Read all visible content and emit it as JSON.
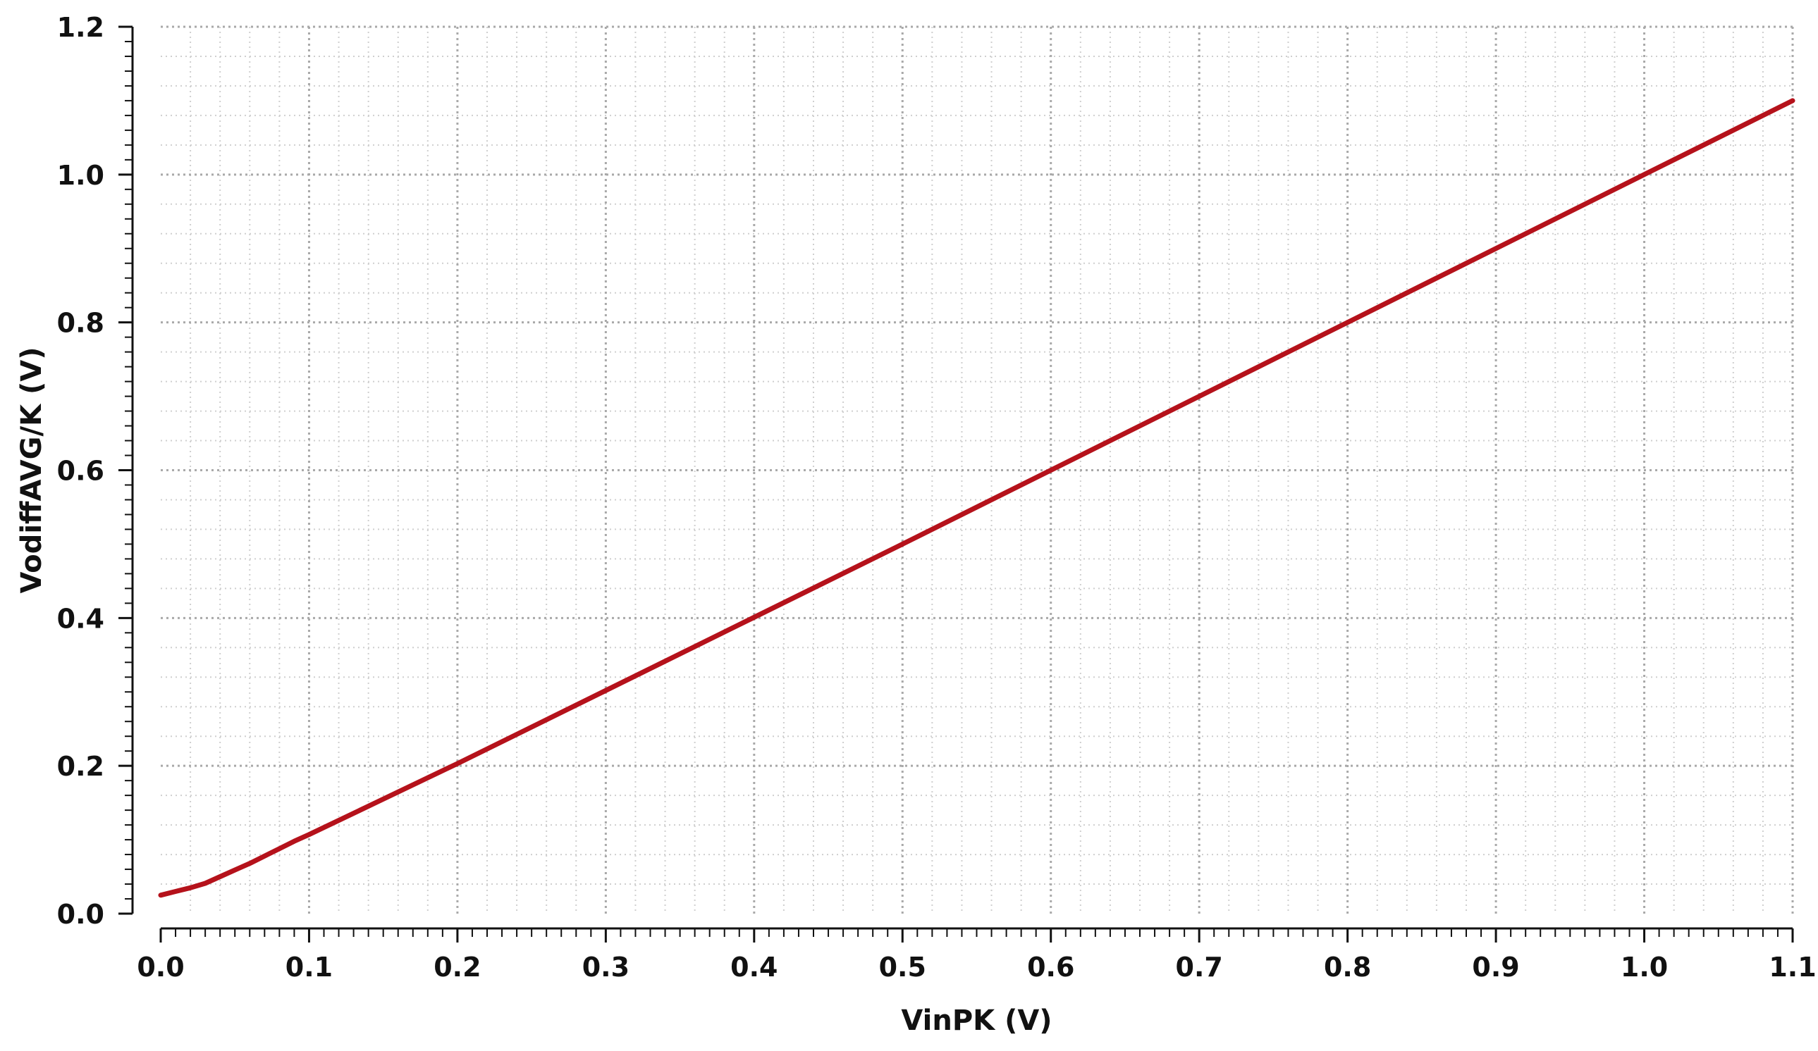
{
  "chart_data": {
    "type": "line",
    "title": "",
    "xlabel": "VinPK (V)",
    "ylabel": "VodiffAVG/K (V)",
    "xlim": [
      0.0,
      1.1
    ],
    "ylim": [
      0.0,
      1.2
    ],
    "x_ticks": [
      "0.0",
      "0.1",
      "0.2",
      "0.3",
      "0.4",
      "0.5",
      "0.6",
      "0.7",
      "0.8",
      "0.9",
      "1.0",
      "1.1"
    ],
    "y_ticks": [
      "0.0",
      "0.2",
      "0.4",
      "0.6",
      "0.8",
      "1.0",
      "1.2"
    ],
    "grid": true,
    "legend": "none",
    "series": [
      {
        "color": "#b5121b",
        "x": [
          0.0,
          0.01,
          0.02,
          0.03,
          0.04,
          0.05,
          0.06,
          0.07,
          0.08,
          0.09,
          0.1,
          0.2,
          0.3,
          0.4,
          0.5,
          0.6,
          0.7,
          0.8,
          0.9,
          1.0,
          1.1
        ],
        "y": [
          0.025,
          0.03,
          0.035,
          0.041,
          0.05,
          0.059,
          0.068,
          0.078,
          0.088,
          0.098,
          0.107,
          0.203,
          0.302,
          0.401,
          0.5,
          0.6,
          0.7,
          0.8,
          0.9,
          1.0,
          1.1
        ]
      }
    ]
  }
}
